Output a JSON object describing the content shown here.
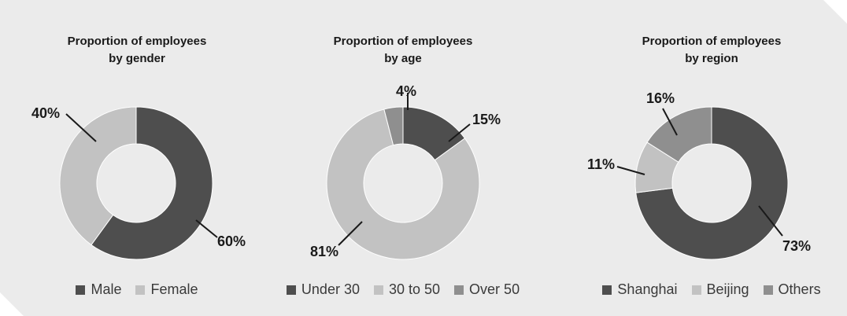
{
  "colors": {
    "background": "#ebebeb",
    "dark": "#4e4e4e",
    "light": "#c2c2c2",
    "mid": "#8f8f8f"
  },
  "chart_data": [
    {
      "type": "pie",
      "donut": true,
      "title_lines": [
        "Proportion of employees",
        "by gender"
      ],
      "categories": [
        "Male",
        "Female"
      ],
      "values": [
        60,
        40
      ],
      "labels": [
        "60%",
        "40%"
      ],
      "colors": [
        "#4e4e4e",
        "#c2c2c2"
      ],
      "legend": "bottom"
    },
    {
      "type": "pie",
      "donut": true,
      "title_lines": [
        "Proportion of employees",
        "by age"
      ],
      "categories": [
        "Under 30",
        "30 to 50",
        "Over 50"
      ],
      "values": [
        15,
        81,
        4
      ],
      "labels": [
        "15%",
        "81%",
        "4%"
      ],
      "colors": [
        "#4e4e4e",
        "#c2c2c2",
        "#8f8f8f"
      ],
      "legend": "bottom"
    },
    {
      "type": "pie",
      "donut": true,
      "title_lines": [
        "Proportion of employees",
        "by region"
      ],
      "categories": [
        "Shanghai",
        "Beijing",
        "Others"
      ],
      "values": [
        73,
        11,
        16
      ],
      "labels": [
        "73%",
        "11%",
        "16%"
      ],
      "colors": [
        "#4e4e4e",
        "#c2c2c2",
        "#8f8f8f"
      ],
      "legend": "bottom"
    }
  ]
}
